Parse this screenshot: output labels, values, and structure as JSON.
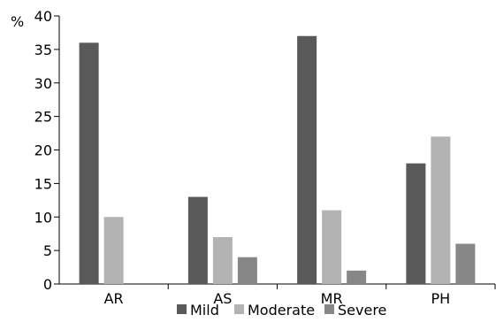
{
  "chart_data": {
    "type": "bar",
    "ylabel": "%",
    "categories": [
      "AR",
      "AS",
      "MR",
      "PH"
    ],
    "series": [
      {
        "name": "Mild",
        "color": "#595959",
        "values": [
          36,
          13,
          37,
          18
        ]
      },
      {
        "name": "Moderate",
        "color": "#b3b3b3",
        "values": [
          10,
          7,
          11,
          22
        ]
      },
      {
        "name": "Severe",
        "color": "#878787",
        "values": [
          0,
          4,
          2,
          6
        ]
      }
    ],
    "ylim": [
      0,
      40
    ],
    "yticks": [
      "0",
      "5",
      "10",
      "15",
      "20",
      "25",
      "30",
      "35",
      "40"
    ],
    "grid": false,
    "legend_position": "bottom"
  }
}
